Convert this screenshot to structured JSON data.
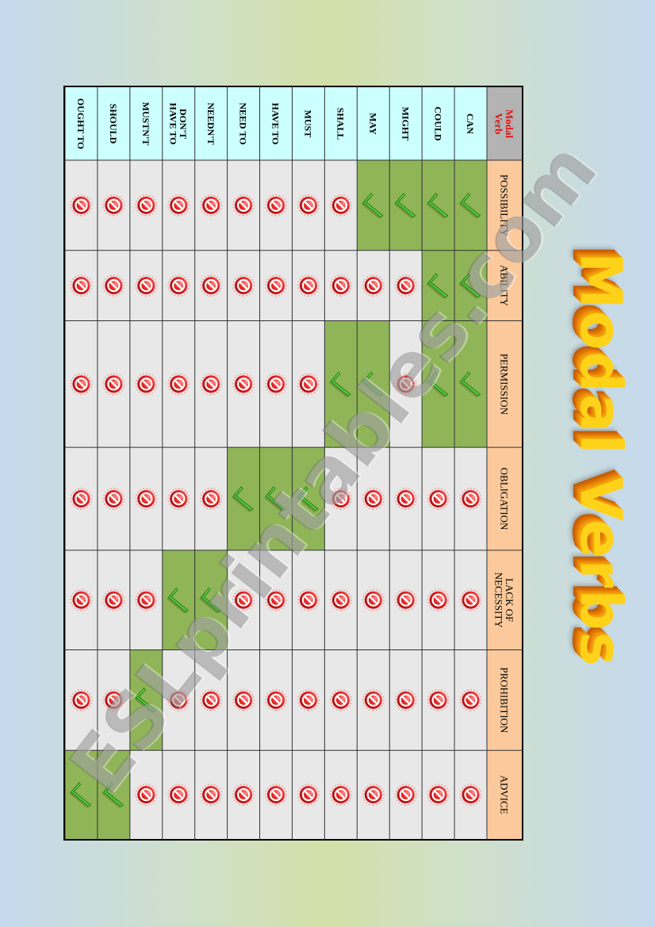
{
  "title": "Modal Verbs",
  "watermark": "ESLprintables.com",
  "table": {
    "corner_label": [
      "Modal",
      "Verb"
    ],
    "categories": [
      "POSSIBILITY",
      "ABILITY",
      "PERMISSION",
      "OBLIGATION",
      "LACK OF NECESSITY",
      "PROHIBITION",
      "ADVICE"
    ],
    "verbs": [
      "CAN",
      "COULD",
      "MIGHT",
      "MAY",
      "SHALL",
      "MUST",
      "HAVE TO",
      "NEED TO",
      "NEEDN'T",
      "DON'T HAVE TO",
      "MUSTN'T",
      "SHOULD",
      "OUGHT TO"
    ],
    "matrix": [
      [
        true,
        true,
        true,
        false,
        false,
        false,
        false
      ],
      [
        true,
        true,
        true,
        false,
        false,
        false,
        false
      ],
      [
        true,
        false,
        false,
        false,
        false,
        false,
        false
      ],
      [
        true,
        false,
        true,
        false,
        false,
        false,
        false
      ],
      [
        false,
        false,
        true,
        false,
        false,
        false,
        false
      ],
      [
        false,
        false,
        false,
        true,
        false,
        false,
        false
      ],
      [
        false,
        false,
        false,
        true,
        false,
        false,
        false
      ],
      [
        false,
        false,
        false,
        true,
        false,
        false,
        false
      ],
      [
        false,
        false,
        false,
        false,
        true,
        false,
        false
      ],
      [
        false,
        false,
        false,
        false,
        true,
        false,
        false
      ],
      [
        false,
        false,
        false,
        false,
        false,
        true,
        false
      ],
      [
        false,
        false,
        false,
        false,
        false,
        false,
        true
      ],
      [
        false,
        false,
        false,
        false,
        false,
        false,
        true
      ]
    ],
    "icons": {
      "yes": "green-check-icon",
      "no": "red-no-sign-icon"
    }
  },
  "colors": {
    "verb_column": "#ccffff",
    "header_row": "#fbc99b",
    "corner": "#b3b3b3",
    "corner_text": "#e01010",
    "yes_cell": "#8fb558",
    "no_cell": "#e8e8e8",
    "check": "#44d62c",
    "no_sign": "#e12020"
  }
}
